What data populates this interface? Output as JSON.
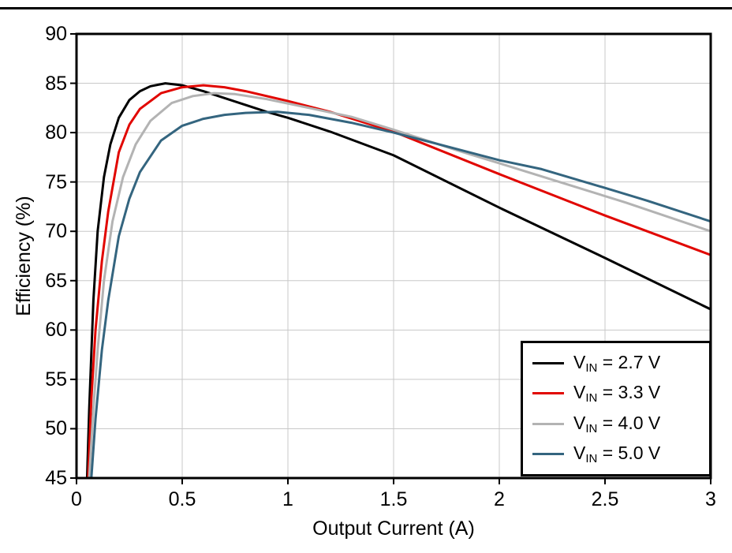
{
  "axes": {
    "x_title": "Output Current (A)",
    "y_title": "Efficiency (%)"
  },
  "chart_data": {
    "type": "line",
    "title": "",
    "xlabel": "Output Current (A)",
    "ylabel": "Efficiency (%)",
    "xlim": [
      0,
      3
    ],
    "ylim": [
      45,
      90
    ],
    "xticks": [
      0,
      0.5,
      1,
      1.5,
      2,
      2.5,
      3
    ],
    "xtick_labels": [
      "0",
      "0.5",
      "1",
      "1.5",
      "2",
      "2.5",
      "3"
    ],
    "yticks": [
      45,
      50,
      55,
      60,
      65,
      70,
      75,
      80,
      85,
      90
    ],
    "ytick_labels": [
      "45",
      "50",
      "55",
      "60",
      "65",
      "70",
      "75",
      "80",
      "85",
      "90"
    ],
    "grid": true,
    "grid_color": "#c8c8c8",
    "frame_color": "#000000",
    "legend_position": "bottom-right",
    "series": [
      {
        "name": "VIN = 2.7 V",
        "label_prefix": "V",
        "label_sub": "IN",
        "label_rest": " = 2.7 V",
        "color": "#000000",
        "points": [
          [
            0.05,
            45
          ],
          [
            0.06,
            52
          ],
          [
            0.08,
            63
          ],
          [
            0.1,
            70
          ],
          [
            0.13,
            75.5
          ],
          [
            0.16,
            78.8
          ],
          [
            0.2,
            81.5
          ],
          [
            0.25,
            83.3
          ],
          [
            0.3,
            84.2
          ],
          [
            0.35,
            84.7
          ],
          [
            0.42,
            85.0
          ],
          [
            0.5,
            84.8
          ],
          [
            0.6,
            84.2
          ],
          [
            0.7,
            83.5
          ],
          [
            0.8,
            82.8
          ],
          [
            0.9,
            82.1
          ],
          [
            1.0,
            81.5
          ],
          [
            1.2,
            80.1
          ],
          [
            1.5,
            77.7
          ],
          [
            2.0,
            72.4
          ],
          [
            2.5,
            67.3
          ],
          [
            3.0,
            62.1
          ]
        ]
      },
      {
        "name": "VIN = 3.3 V",
        "label_prefix": "V",
        "label_sub": "IN",
        "label_rest": " = 3.3 V",
        "color": "#e10600",
        "points": [
          [
            0.055,
            45
          ],
          [
            0.07,
            53
          ],
          [
            0.09,
            60
          ],
          [
            0.12,
            67
          ],
          [
            0.15,
            72
          ],
          [
            0.2,
            78
          ],
          [
            0.25,
            80.8
          ],
          [
            0.3,
            82.4
          ],
          [
            0.4,
            84.0
          ],
          [
            0.5,
            84.6
          ],
          [
            0.6,
            84.8
          ],
          [
            0.7,
            84.6
          ],
          [
            0.8,
            84.2
          ],
          [
            1.0,
            83.2
          ],
          [
            1.2,
            82.1
          ],
          [
            1.5,
            80.1
          ],
          [
            2.0,
            75.8
          ],
          [
            2.5,
            71.6
          ],
          [
            3.0,
            67.6
          ]
        ]
      },
      {
        "name": "VIN = 4.0 V",
        "label_prefix": "V",
        "label_sub": "IN",
        "label_rest": " = 4.0 V",
        "color": "#b3b3b3",
        "points": [
          [
            0.06,
            45
          ],
          [
            0.08,
            52
          ],
          [
            0.1,
            58
          ],
          [
            0.13,
            65
          ],
          [
            0.17,
            71
          ],
          [
            0.22,
            75.5
          ],
          [
            0.28,
            78.8
          ],
          [
            0.35,
            81.2
          ],
          [
            0.45,
            83.0
          ],
          [
            0.55,
            83.7
          ],
          [
            0.65,
            84.0
          ],
          [
            0.75,
            83.9
          ],
          [
            0.9,
            83.4
          ],
          [
            1.1,
            82.5
          ],
          [
            1.3,
            81.6
          ],
          [
            1.5,
            80.3
          ],
          [
            1.8,
            78.2
          ],
          [
            2.0,
            76.9
          ],
          [
            2.3,
            74.9
          ],
          [
            2.6,
            72.9
          ],
          [
            3.0,
            70.0
          ]
        ]
      },
      {
        "name": "VIN = 5.0 V",
        "label_prefix": "V",
        "label_sub": "IN",
        "label_rest": " = 5.0 V",
        "color": "#34657f",
        "points": [
          [
            0.07,
            45
          ],
          [
            0.09,
            51
          ],
          [
            0.12,
            58
          ],
          [
            0.15,
            63
          ],
          [
            0.2,
            69.5
          ],
          [
            0.25,
            73.3
          ],
          [
            0.3,
            76.0
          ],
          [
            0.4,
            79.2
          ],
          [
            0.5,
            80.7
          ],
          [
            0.6,
            81.4
          ],
          [
            0.7,
            81.8
          ],
          [
            0.8,
            82.0
          ],
          [
            0.95,
            82.1
          ],
          [
            1.1,
            81.8
          ],
          [
            1.3,
            81.0
          ],
          [
            1.5,
            80.0
          ],
          [
            1.7,
            78.9
          ],
          [
            2.0,
            77.2
          ],
          [
            2.2,
            76.3
          ],
          [
            2.5,
            74.4
          ],
          [
            2.7,
            73.1
          ],
          [
            3.0,
            71.0
          ]
        ]
      }
    ]
  }
}
